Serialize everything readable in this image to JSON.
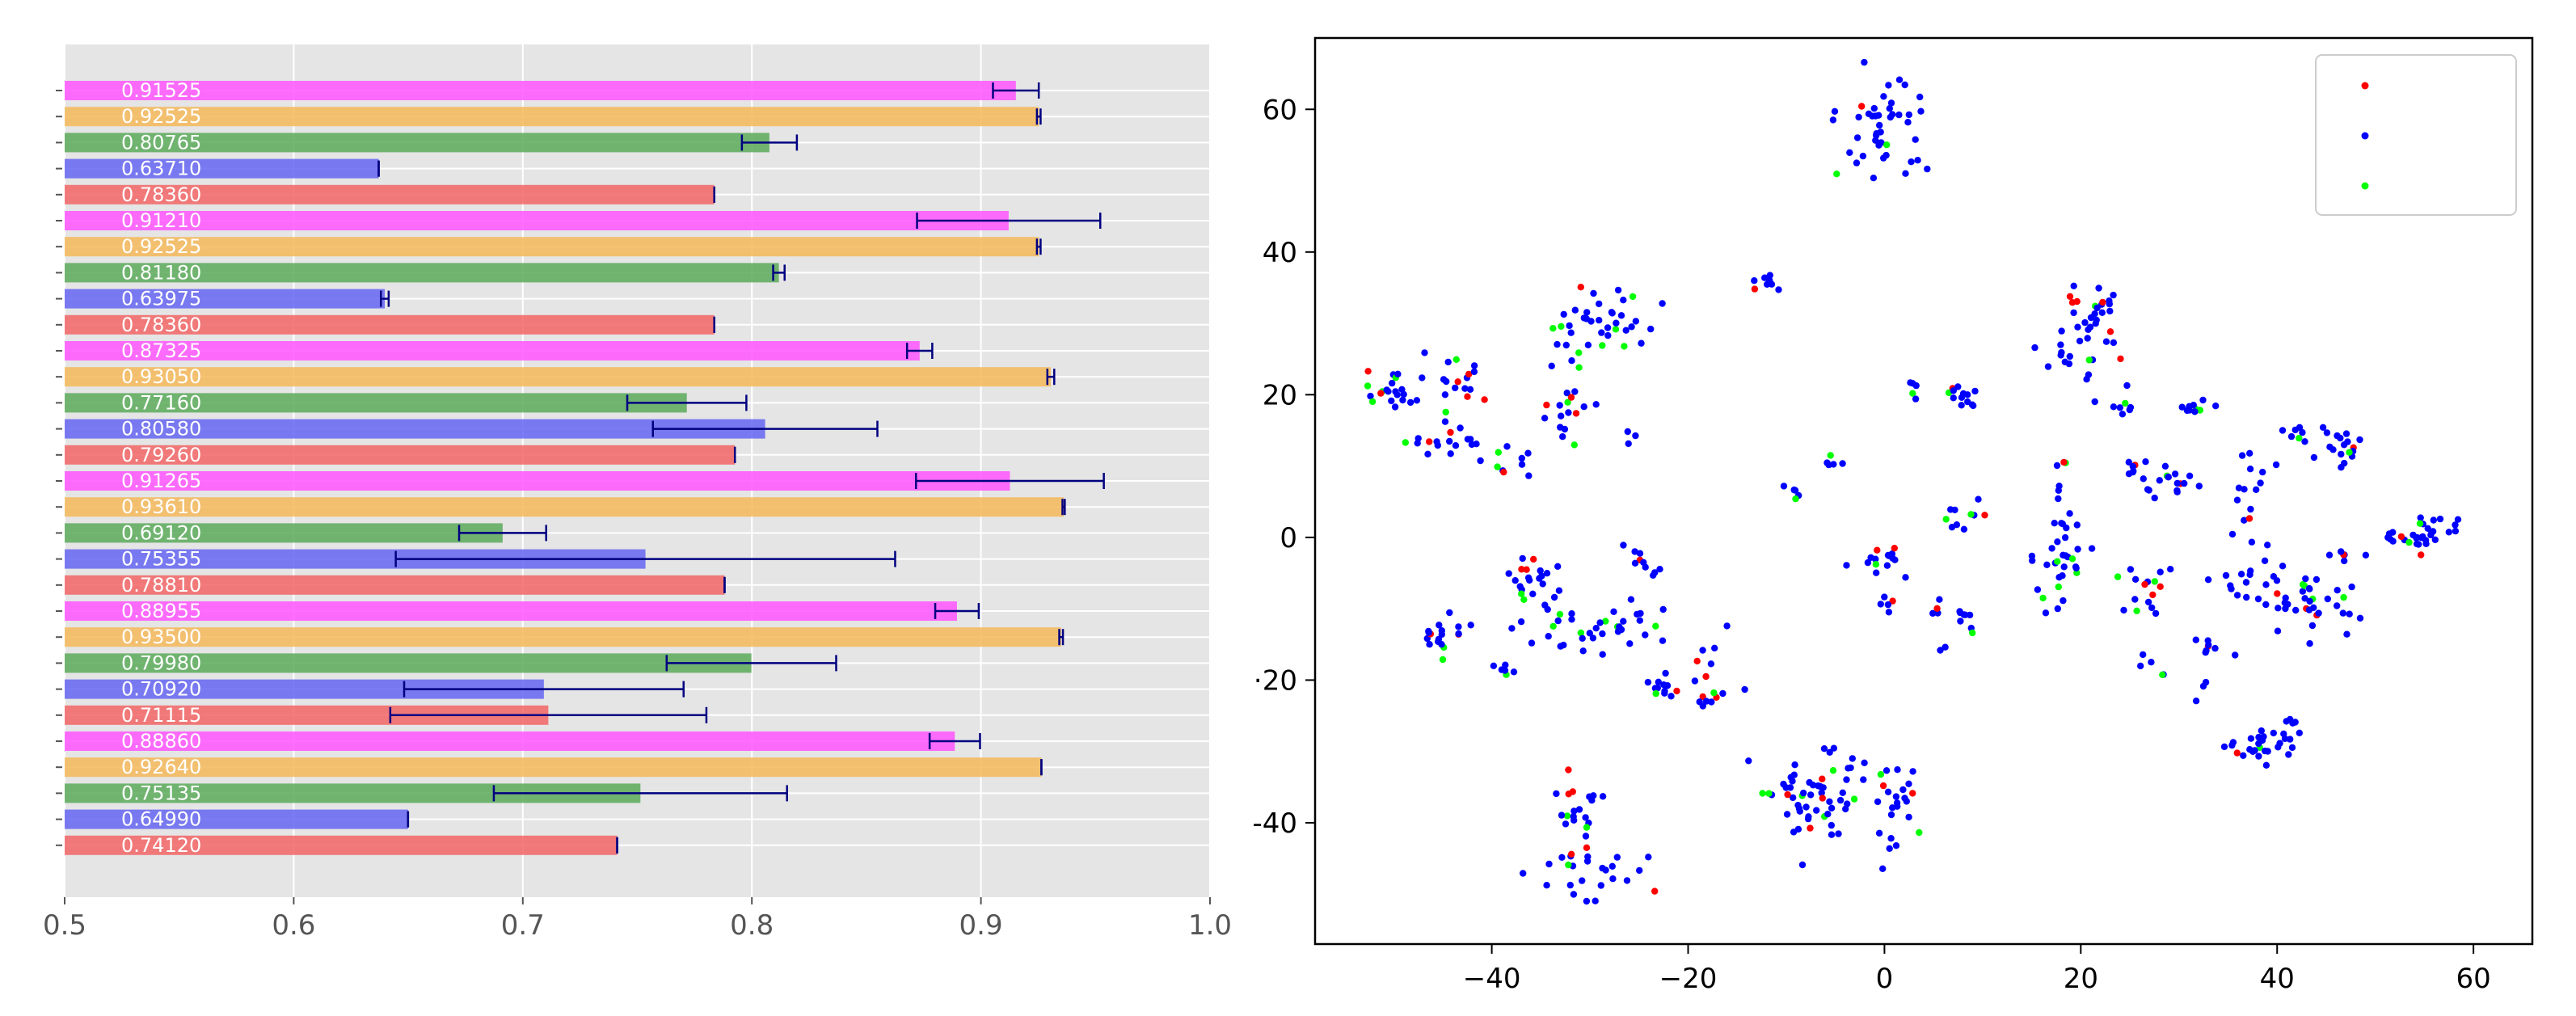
{
  "chart_data": [
    {
      "type": "bar",
      "orientation": "horizontal",
      "xlim": [
        0.5,
        1.0
      ],
      "xticks": [
        "0.5",
        "0.6",
        "0.7",
        "0.8",
        "0.9",
        "1.0"
      ],
      "grid": true,
      "background": "#e5e5e5",
      "color_cycle": [
        "#ff55ff",
        "#f5b95a",
        "#5aaa5a",
        "#6565f2",
        "#f26565"
      ],
      "errorbar_color": "#000080",
      "bars": [
        {
          "label": "0.91525",
          "value": 0.91525,
          "err": 0.01
        },
        {
          "label": "0.92525",
          "value": 0.92525,
          "err": 0.0008
        },
        {
          "label": "0.80765",
          "value": 0.80765,
          "err": 0.012
        },
        {
          "label": "0.63710",
          "value": 0.6371,
          "err": 0.0
        },
        {
          "label": "0.78360",
          "value": 0.7836,
          "err": 0.0
        },
        {
          "label": "0.91210",
          "value": 0.9121,
          "err": 0.04
        },
        {
          "label": "0.92525",
          "value": 0.92525,
          "err": 0.0008
        },
        {
          "label": "0.81180",
          "value": 0.8118,
          "err": 0.0025
        },
        {
          "label": "0.63975",
          "value": 0.63975,
          "err": 0.0017
        },
        {
          "label": "0.78360",
          "value": 0.7836,
          "err": 0.0
        },
        {
          "label": "0.87325",
          "value": 0.87325,
          "err": 0.0055
        },
        {
          "label": "0.93050",
          "value": 0.9305,
          "err": 0.0015
        },
        {
          "label": "0.77160",
          "value": 0.7716,
          "err": 0.026
        },
        {
          "label": "0.80580",
          "value": 0.8058,
          "err": 0.049
        },
        {
          "label": "0.79260",
          "value": 0.7926,
          "err": 0.0
        },
        {
          "label": "0.91265",
          "value": 0.91265,
          "err": 0.041
        },
        {
          "label": "0.93610",
          "value": 0.9361,
          "err": 0.0005
        },
        {
          "label": "0.69120",
          "value": 0.6912,
          "err": 0.019
        },
        {
          "label": "0.75355",
          "value": 0.75355,
          "err": 0.109
        },
        {
          "label": "0.78810",
          "value": 0.7881,
          "err": 0.0
        },
        {
          "label": "0.88955",
          "value": 0.88955,
          "err": 0.0095
        },
        {
          "label": "0.93500",
          "value": 0.935,
          "err": 0.0008
        },
        {
          "label": "0.79980",
          "value": 0.7998,
          "err": 0.037
        },
        {
          "label": "0.70920",
          "value": 0.7092,
          "err": 0.061
        },
        {
          "label": "0.71115",
          "value": 0.71115,
          "err": 0.069
        },
        {
          "label": "0.88860",
          "value": 0.8886,
          "err": 0.011
        },
        {
          "label": "0.92640",
          "value": 0.9264,
          "err": 0.0
        },
        {
          "label": "0.75135",
          "value": 0.75135,
          "err": 0.064
        },
        {
          "label": "0.64990",
          "value": 0.6499,
          "err": 0.0
        },
        {
          "label": "0.74120",
          "value": 0.7412,
          "err": 0.0
        }
      ]
    },
    {
      "type": "scatter",
      "xlim": [
        -58,
        66
      ],
      "ylim": [
        -57,
        70
      ],
      "xticks": [
        -40,
        -20,
        0,
        20,
        40,
        60
      ],
      "yticks": [
        60,
        40,
        20,
        0,
        -20,
        -40
      ],
      "xtick_labels": [
        "−40",
        "−20",
        "0",
        "20",
        "40",
        "60"
      ],
      "ytick_labels": [
        "60",
        "40",
        "20",
        "0",
        "·20",
        "-40"
      ],
      "legend_placement": "upper right",
      "series_colors": [
        "#ff0000",
        "#0000ff",
        "#00ff00"
      ],
      "seed": 17,
      "clusters": [
        {
          "x": 0,
          "y": 57,
          "sx": 2.6,
          "sy": 4.0,
          "n": 45
        },
        {
          "x": -12,
          "y": 35.5,
          "sx": 0.8,
          "sy": 1.0,
          "n": 8
        },
        {
          "x": -50,
          "y": 20,
          "sx": 1.8,
          "sy": 2.0,
          "n": 22
        },
        {
          "x": -45,
          "y": 13,
          "sx": 2.2,
          "sy": 0.8,
          "n": 14
        },
        {
          "x": -43,
          "y": 21,
          "sx": 2.0,
          "sy": 3.0,
          "n": 20
        },
        {
          "x": -37,
          "y": 10.5,
          "sx": 2.0,
          "sy": 0.8,
          "n": 10
        },
        {
          "x": -32,
          "y": 18,
          "sx": 1.5,
          "sy": 2.0,
          "n": 16
        },
        {
          "x": -29,
          "y": 31,
          "sx": 2.5,
          "sy": 2.0,
          "n": 32
        },
        {
          "x": -26,
          "y": 14,
          "sx": 0.4,
          "sy": 0.8,
          "n": 3
        },
        {
          "x": -32,
          "y": 27,
          "sx": 1.0,
          "sy": 3.0,
          "n": 8
        },
        {
          "x": 4,
          "y": 21,
          "sx": 1.5,
          "sy": 0.8,
          "n": 10
        },
        {
          "x": 8.5,
          "y": 20,
          "sx": 0.8,
          "sy": 1.0,
          "n": 8
        },
        {
          "x": -5,
          "y": 11,
          "sx": 0.5,
          "sy": 0.8,
          "n": 5
        },
        {
          "x": -9,
          "y": 6,
          "sx": 0.5,
          "sy": 0.8,
          "n": 5
        },
        {
          "x": 8,
          "y": 2.5,
          "sx": 1.0,
          "sy": 1.2,
          "n": 10
        },
        {
          "x": -36,
          "y": -7,
          "sx": 1.5,
          "sy": 2.5,
          "n": 25
        },
        {
          "x": -31,
          "y": -13,
          "sx": 2.2,
          "sy": 1.5,
          "n": 20
        },
        {
          "x": -26,
          "y": -12.5,
          "sx": 1.5,
          "sy": 1.5,
          "n": 14
        },
        {
          "x": -25,
          "y": -3,
          "sx": 1.0,
          "sy": 1.5,
          "n": 10
        },
        {
          "x": -45,
          "y": -14,
          "sx": 1.5,
          "sy": 1.8,
          "n": 18
        },
        {
          "x": -39,
          "y": -18.5,
          "sx": 1.0,
          "sy": 0.5,
          "n": 6
        },
        {
          "x": -23,
          "y": -21,
          "sx": 2.0,
          "sy": 0.8,
          "n": 12
        },
        {
          "x": -18,
          "y": -19,
          "sx": 1.5,
          "sy": 3.0,
          "n": 16
        },
        {
          "x": -31,
          "y": -37,
          "sx": 1.2,
          "sy": 3.5,
          "n": 20
        },
        {
          "x": -30,
          "y": -47,
          "sx": 3.0,
          "sy": 2.0,
          "n": 25
        },
        {
          "x": -7,
          "y": -36,
          "sx": 3.0,
          "sy": 4.0,
          "n": 60
        },
        {
          "x": 1,
          "y": -38,
          "sx": 1.5,
          "sy": 4.0,
          "n": 22
        },
        {
          "x": 0,
          "y": -3.5,
          "sx": 1.5,
          "sy": 1.0,
          "n": 15
        },
        {
          "x": 0,
          "y": -9,
          "sx": 0.6,
          "sy": 0.6,
          "n": 5
        },
        {
          "x": 7,
          "y": -12,
          "sx": 1.2,
          "sy": 1.8,
          "n": 12
        },
        {
          "x": 5,
          "y": -10,
          "sx": 0.4,
          "sy": 0.4,
          "n": 2
        },
        {
          "x": 18,
          "y": -4,
          "sx": 1.5,
          "sy": 3.5,
          "n": 30
        },
        {
          "x": 18,
          "y": 6,
          "sx": 0.8,
          "sy": 2.5,
          "n": 8
        },
        {
          "x": 21,
          "y": 31,
          "sx": 2.0,
          "sy": 2.0,
          "n": 30
        },
        {
          "x": 19,
          "y": 25,
          "sx": 1.5,
          "sy": 2.0,
          "n": 12
        },
        {
          "x": 24,
          "y": 17.5,
          "sx": 1.0,
          "sy": 1.2,
          "n": 8
        },
        {
          "x": 25,
          "y": 9,
          "sx": 1.2,
          "sy": 0.8,
          "n": 8
        },
        {
          "x": 29,
          "y": 8,
          "sx": 1.5,
          "sy": 2.0,
          "n": 16
        },
        {
          "x": 31,
          "y": 18,
          "sx": 1.2,
          "sy": 0.8,
          "n": 10
        },
        {
          "x": 26,
          "y": -7,
          "sx": 2.0,
          "sy": 2.0,
          "n": 16
        },
        {
          "x": 28,
          "y": -18,
          "sx": 1.0,
          "sy": 0.8,
          "n": 5
        },
        {
          "x": 33,
          "y": -15,
          "sx": 1.2,
          "sy": 1.0,
          "n": 8
        },
        {
          "x": 32,
          "y": -21,
          "sx": 0.5,
          "sy": 0.6,
          "n": 3
        },
        {
          "x": 37,
          "y": 5.5,
          "sx": 1.5,
          "sy": 2.5,
          "n": 14
        },
        {
          "x": 37,
          "y": -6,
          "sx": 2.0,
          "sy": 2.0,
          "n": 16
        },
        {
          "x": 41,
          "y": -9,
          "sx": 2.0,
          "sy": 1.8,
          "n": 20
        },
        {
          "x": 46,
          "y": 13,
          "sx": 2.0,
          "sy": 1.5,
          "n": 20
        },
        {
          "x": 42,
          "y": 14,
          "sx": 1.0,
          "sy": 1.0,
          "n": 6
        },
        {
          "x": 46,
          "y": -10,
          "sx": 1.5,
          "sy": 2.0,
          "n": 16
        },
        {
          "x": 47,
          "y": -2.5,
          "sx": 1.0,
          "sy": 0.8,
          "n": 6
        },
        {
          "x": 55,
          "y": 0.5,
          "sx": 2.2,
          "sy": 1.5,
          "n": 32
        },
        {
          "x": 38.5,
          "y": -28.5,
          "sx": 2.0,
          "sy": 1.2,
          "n": 28
        },
        {
          "x": 41,
          "y": -26,
          "sx": 0.8,
          "sy": 0.8,
          "n": 4
        }
      ]
    }
  ]
}
